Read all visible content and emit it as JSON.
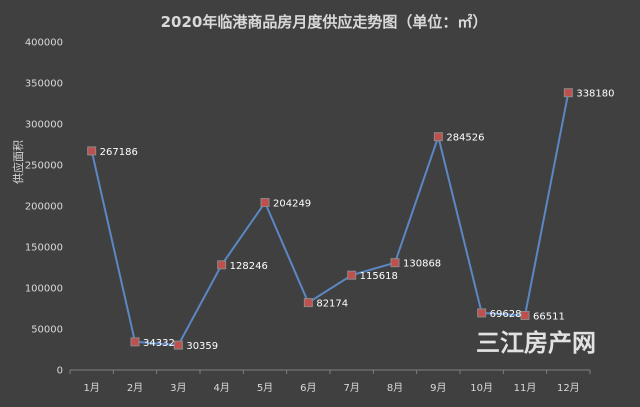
{
  "colors": {
    "background": "#404040",
    "line": "#5b87c5",
    "marker_fill": "#c0504d",
    "marker_stroke": "#8a8a8a",
    "axis": "#7f7f7f",
    "text": "#d9d9d9",
    "label": "#ffffff"
  },
  "watermark": "三江房产网",
  "chart_data": {
    "type": "line",
    "title": "2020年临港商品房月度供应走势图（单位：㎡）",
    "xlabel": "",
    "ylabel": "供应面积",
    "categories": [
      "1月",
      "2月",
      "3月",
      "4月",
      "5月",
      "6月",
      "7月",
      "8月",
      "9月",
      "10月",
      "11月",
      "12月"
    ],
    "series": [
      {
        "values": [
          267186,
          34332,
          30359,
          128246,
          204249,
          82174,
          115618,
          130868,
          284526,
          69628,
          66511,
          338180
        ]
      }
    ],
    "ylim": [
      0,
      400000
    ],
    "yticks": [
      "0",
      "50000",
      "100000",
      "150000",
      "200000",
      "250000",
      "300000",
      "350000",
      "400000"
    ],
    "grid": false,
    "legend": "none",
    "data_labels": true
  }
}
